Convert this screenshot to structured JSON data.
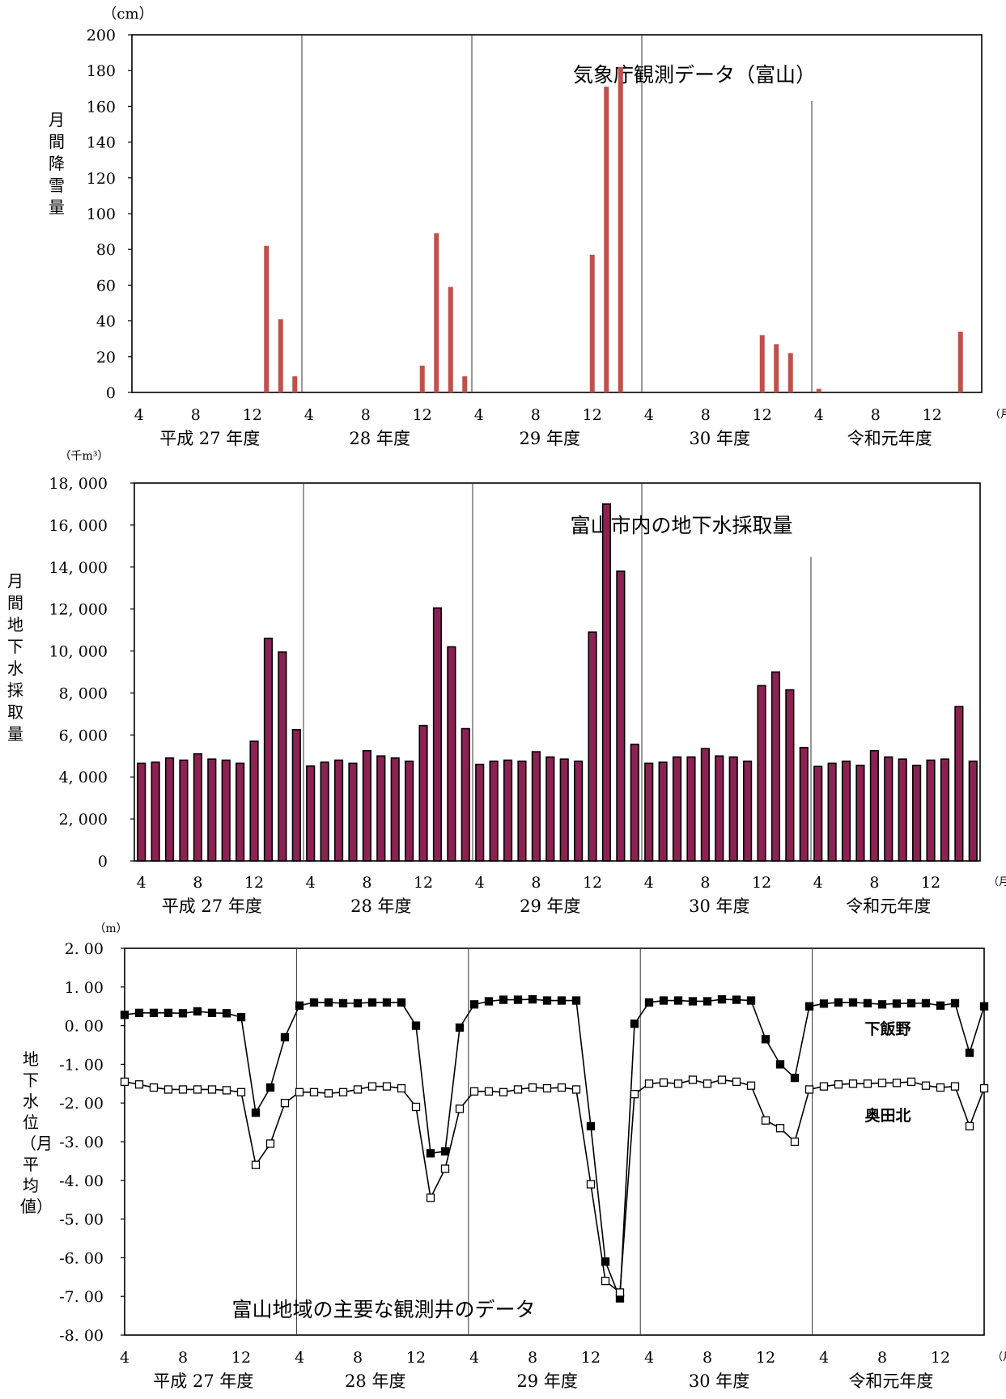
{
  "x_ticks": [
    "4",
    "8",
    "12"
  ],
  "month_unit": "（月）",
  "fiscal_years": [
    "平成 27 年度",
    "28 年度",
    "29 年度",
    "30 年度",
    "令和元年度"
  ],
  "chart_data": [
    {
      "type": "bar",
      "title": "気象庁観測データ（富山）",
      "unit": "（cm）",
      "ylabel": "月間降雪量",
      "ylim": [
        0,
        200
      ],
      "yticks": [
        "0",
        "20",
        "40",
        "60",
        "80",
        "100",
        "120",
        "140",
        "160",
        "180",
        "200"
      ],
      "color": "#c0504d",
      "months_per_year": [
        12,
        12,
        12,
        12,
        12
      ],
      "values": [
        0,
        0,
        0,
        0,
        0,
        0,
        0,
        0,
        0,
        82,
        41,
        9,
        0,
        0,
        0,
        0,
        0,
        0,
        0,
        0,
        15,
        89,
        59,
        9,
        0,
        0,
        0,
        0,
        0,
        0,
        0,
        0,
        77,
        171,
        182,
        0,
        0,
        0,
        0,
        0,
        0,
        0,
        0,
        0,
        32,
        27,
        22,
        0,
        2,
        0,
        0,
        0,
        0,
        0,
        0,
        0,
        0,
        0,
        34,
        0
      ]
    },
    {
      "type": "bar",
      "title": "富山市内の地下水採取量",
      "unit": "（千m³）",
      "ylabel": "月間地下水採取量",
      "ylim": [
        0,
        18000
      ],
      "yticks": [
        "0",
        "2, 000",
        "4, 000",
        "6, 000",
        "8, 000",
        "10, 000",
        "12, 000",
        "14, 000",
        "16, 000",
        "18, 000"
      ],
      "color": "#8b2252",
      "months_per_year": [
        12,
        12,
        12,
        12,
        12
      ],
      "values": [
        4650,
        4700,
        4900,
        4800,
        5100,
        4850,
        4800,
        4650,
        5700,
        10600,
        9950,
        6250,
        4520,
        4700,
        4800,
        4650,
        5250,
        5000,
        4900,
        4750,
        6450,
        12050,
        10200,
        6300,
        4600,
        4750,
        4800,
        4750,
        5200,
        4950,
        4850,
        4750,
        10900,
        17000,
        13800,
        5550,
        4650,
        4700,
        4950,
        4950,
        5350,
        5000,
        4950,
        4750,
        8350,
        9000,
        8150,
        5400,
        4500,
        4650,
        4750,
        4550,
        5250,
        4950,
        4850,
        4550,
        4800,
        4850,
        7350,
        4750
      ]
    },
    {
      "type": "line",
      "title": "富山地域の主要な観測井のデータ",
      "unit": "（m）",
      "ylabel": "地下水位（月平均値）",
      "ylim": [
        -8,
        2
      ],
      "yticks": [
        "2. 00",
        "1. 00",
        "0. 00",
        "-1. 00",
        "-2. 00",
        "-3. 00",
        "-4. 00",
        "-5. 00",
        "-6. 00",
        "-7. 00",
        "-8. 00"
      ],
      "months_per_year": [
        12,
        12,
        12,
        12,
        12
      ],
      "series": [
        {
          "name": "下飯野",
          "marker": "filled-square",
          "values": [
            0.28,
            0.33,
            0.33,
            0.33,
            0.32,
            0.37,
            0.33,
            0.32,
            0.22,
            -2.25,
            -1.6,
            -0.3,
            0.52,
            0.6,
            0.6,
            0.58,
            0.58,
            0.6,
            0.6,
            0.6,
            0.0,
            -3.3,
            -3.25,
            -0.05,
            0.55,
            0.63,
            0.67,
            0.67,
            0.68,
            0.65,
            0.65,
            0.65,
            -2.6,
            -6.1,
            -7.05,
            0.05,
            0.6,
            0.65,
            0.65,
            0.63,
            0.63,
            0.68,
            0.67,
            0.65,
            -0.35,
            -1.0,
            -1.35,
            0.5,
            0.57,
            0.6,
            0.6,
            0.58,
            0.55,
            0.57,
            0.58,
            0.58,
            0.52,
            0.58,
            -0.7,
            0.5
          ]
        },
        {
          "name": "奥田北",
          "marker": "open-square",
          "values": [
            -1.45,
            -1.52,
            -1.6,
            -1.65,
            -1.65,
            -1.65,
            -1.65,
            -1.67,
            -1.72,
            -3.6,
            -3.05,
            -2.0,
            -1.72,
            -1.72,
            -1.75,
            -1.72,
            -1.65,
            -1.57,
            -1.57,
            -1.62,
            -2.1,
            -4.45,
            -3.7,
            -2.15,
            -1.7,
            -1.7,
            -1.72,
            -1.65,
            -1.6,
            -1.62,
            -1.6,
            -1.65,
            -4.1,
            -6.6,
            -6.9,
            -1.77,
            -1.5,
            -1.47,
            -1.5,
            -1.4,
            -1.5,
            -1.4,
            -1.45,
            -1.55,
            -2.45,
            -2.65,
            -3.0,
            -1.65,
            -1.57,
            -1.52,
            -1.5,
            -1.5,
            -1.48,
            -1.48,
            -1.45,
            -1.55,
            -1.6,
            -1.57,
            -2.6,
            -1.62
          ]
        }
      ]
    }
  ]
}
